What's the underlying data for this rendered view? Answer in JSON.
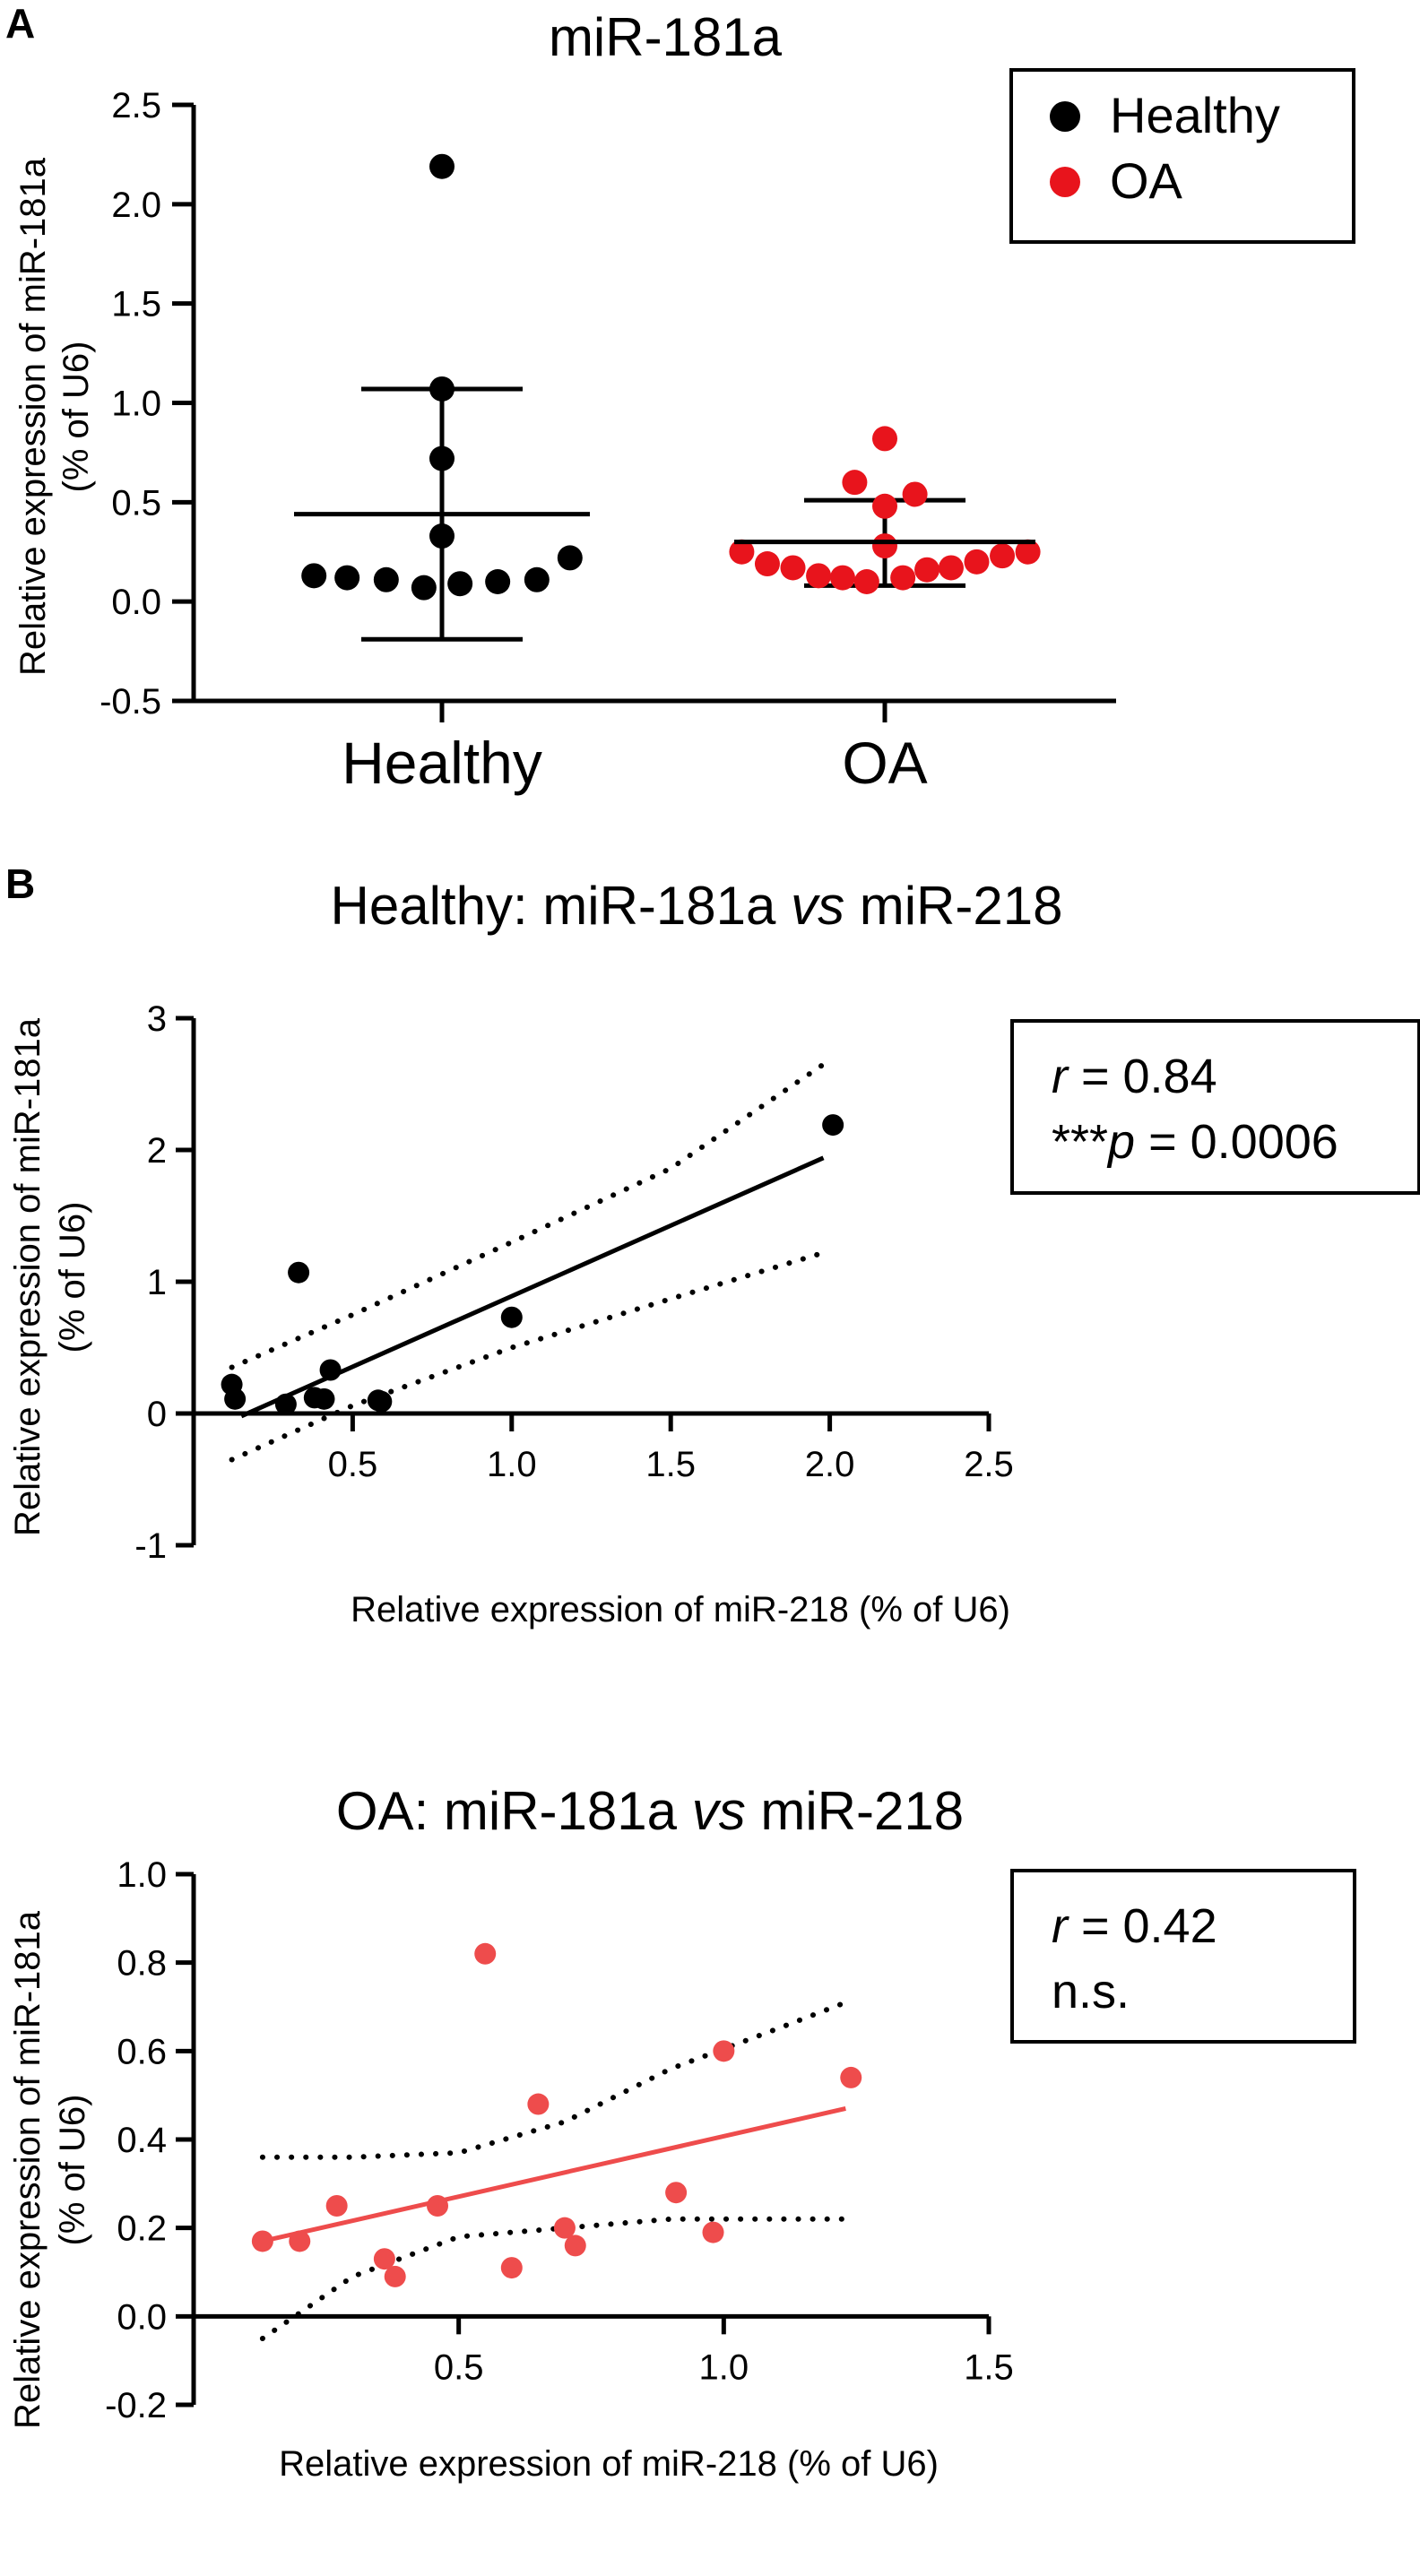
{
  "figure": {
    "panel_a": "A",
    "panel_b": "B"
  },
  "colors": {
    "healthy": "#000000",
    "oa": "#e8141c",
    "oa_scatter": "#ee4c4c",
    "axis": "#000000"
  },
  "chart_data": [
    {
      "id": "a",
      "type": "scatter",
      "title": "miR-181a",
      "xlabel": "",
      "ylabel_line1": "Relative expression of miR-181a",
      "ylabel_line2": "(% of U6)",
      "ylim": [
        -0.5,
        2.5
      ],
      "ytick_values": [
        -0.5,
        0.0,
        0.5,
        1.0,
        1.5,
        2.0,
        2.5
      ],
      "ytick_labels": [
        "-0.5",
        "0.0",
        "0.5",
        "1.0",
        "1.5",
        "2.0",
        "2.5"
      ],
      "categories": [
        "Healthy",
        "OA"
      ],
      "legend": {
        "items": [
          "Healthy",
          "OA"
        ],
        "placement": "top-right"
      },
      "series": [
        {
          "name": "Healthy",
          "color": "#000000",
          "mean": 0.44,
          "sd_upper": 1.07,
          "sd_lower": -0.19,
          "points": [
            {
              "offset": -0.85,
              "y": 0.13
            },
            {
              "offset": -0.63,
              "y": 0.12
            },
            {
              "offset": -0.37,
              "y": 0.11
            },
            {
              "offset": -0.12,
              "y": 0.07
            },
            {
              "offset": 0.0,
              "y": 2.19
            },
            {
              "offset": 0.0,
              "y": 1.07
            },
            {
              "offset": 0.0,
              "y": 0.72
            },
            {
              "offset": 0.0,
              "y": 0.33
            },
            {
              "offset": 0.12,
              "y": 0.09
            },
            {
              "offset": 0.37,
              "y": 0.1
            },
            {
              "offset": 0.63,
              "y": 0.11
            },
            {
              "offset": 0.85,
              "y": 0.22
            }
          ]
        },
        {
          "name": "OA",
          "color": "#e8141c",
          "mean": 0.3,
          "sd_upper": 0.51,
          "sd_lower": 0.08,
          "points": [
            {
              "offset": -0.95,
              "y": 0.25
            },
            {
              "offset": -0.78,
              "y": 0.19
            },
            {
              "offset": -0.61,
              "y": 0.17
            },
            {
              "offset": -0.44,
              "y": 0.13
            },
            {
              "offset": -0.28,
              "y": 0.12
            },
            {
              "offset": -0.2,
              "y": 0.6
            },
            {
              "offset": -0.12,
              "y": 0.1
            },
            {
              "offset": 0.0,
              "y": 0.48
            },
            {
              "offset": 0.0,
              "y": 0.28
            },
            {
              "offset": 0.0,
              "y": 0.82
            },
            {
              "offset": 0.12,
              "y": 0.12
            },
            {
              "offset": 0.2,
              "y": 0.54
            },
            {
              "offset": 0.28,
              "y": 0.16
            },
            {
              "offset": 0.44,
              "y": 0.17
            },
            {
              "offset": 0.61,
              "y": 0.2
            },
            {
              "offset": 0.78,
              "y": 0.23
            },
            {
              "offset": 0.95,
              "y": 0.25
            }
          ]
        }
      ]
    },
    {
      "id": "b1",
      "type": "scatter",
      "title_pre": "Healthy: miR-181a ",
      "title_em": "vs",
      "title_post": " miR-218",
      "xlabel": "Relative expression of miR-218 (% of U6)",
      "ylabel_line1": "Relative expression of miR-181a",
      "ylabel_line2": "(% of U6)",
      "xlim": [
        0,
        2.5
      ],
      "ylim": [
        -1,
        3
      ],
      "xtick_values": [
        0.5,
        1.0,
        1.5,
        2.0,
        2.5
      ],
      "xtick_labels": [
        "0.5",
        "1.0",
        "1.5",
        "2.0",
        "2.5"
      ],
      "ytick_values": [
        -1,
        0,
        1,
        2,
        3
      ],
      "ytick_labels": [
        "-1",
        "0",
        "1",
        "2",
        "3"
      ],
      "stats": {
        "r_symbol": "r",
        "r_value": " = 0.84",
        "p_stars": "***",
        "p_symbol": "p",
        "p_value": " = 0.0006"
      },
      "points": [
        {
          "x": 0.12,
          "y": 0.22
        },
        {
          "x": 0.13,
          "y": 0.11
        },
        {
          "x": 0.29,
          "y": 0.07
        },
        {
          "x": 0.33,
          "y": 1.07
        },
        {
          "x": 0.38,
          "y": 0.12
        },
        {
          "x": 0.41,
          "y": 0.11
        },
        {
          "x": 0.43,
          "y": 0.33
        },
        {
          "x": 0.58,
          "y": 0.1
        },
        {
          "x": 0.59,
          "y": 0.09
        },
        {
          "x": 1.0,
          "y": 0.73
        },
        {
          "x": 2.01,
          "y": 2.19
        }
      ],
      "fit": {
        "x": [
          0.15,
          1.98
        ],
        "y": [
          -0.02,
          1.94
        ]
      },
      "ci_upper": [
        [
          0.12,
          0.35
        ],
        [
          0.5,
          0.75
        ],
        [
          1.0,
          1.3
        ],
        [
          1.5,
          1.86
        ],
        [
          1.98,
          2.65
        ]
      ],
      "ci_lower": [
        [
          0.12,
          -0.35
        ],
        [
          0.5,
          0.06
        ],
        [
          1.0,
          0.5
        ],
        [
          1.5,
          0.87
        ],
        [
          1.98,
          1.22
        ]
      ]
    },
    {
      "id": "b2",
      "type": "scatter",
      "title_pre": "OA: miR-181a ",
      "title_em": "vs",
      "title_post": " miR-218",
      "xlabel": "Relative expression of miR-218 (% of U6)",
      "ylabel_line1": "Relative expression of miR-181a",
      "ylabel_line2": "(% of U6)",
      "xlim": [
        0,
        1.5
      ],
      "ylim": [
        -0.2,
        1.0
      ],
      "xtick_values": [
        0.5,
        1.0,
        1.5
      ],
      "xtick_labels": [
        "0.5",
        "1.0",
        "1.5"
      ],
      "ytick_values": [
        -0.2,
        0.0,
        0.2,
        0.4,
        0.6,
        0.8,
        1.0
      ],
      "ytick_labels": [
        "-0.2",
        "0.0",
        "0.2",
        "0.4",
        "0.6",
        "0.8",
        "1.0"
      ],
      "stats": {
        "r_symbol": "r",
        "r_value": " = 0.42",
        "ns": "n.s."
      },
      "points": [
        {
          "x": 0.13,
          "y": 0.17
        },
        {
          "x": 0.2,
          "y": 0.17
        },
        {
          "x": 0.27,
          "y": 0.25
        },
        {
          "x": 0.36,
          "y": 0.13
        },
        {
          "x": 0.38,
          "y": 0.09
        },
        {
          "x": 0.46,
          "y": 0.25
        },
        {
          "x": 0.55,
          "y": 0.82
        },
        {
          "x": 0.6,
          "y": 0.11
        },
        {
          "x": 0.65,
          "y": 0.48
        },
        {
          "x": 0.7,
          "y": 0.2
        },
        {
          "x": 0.72,
          "y": 0.16
        },
        {
          "x": 0.91,
          "y": 0.28
        },
        {
          "x": 0.98,
          "y": 0.19
        },
        {
          "x": 1.0,
          "y": 0.6
        },
        {
          "x": 1.24,
          "y": 0.54
        }
      ],
      "fit": {
        "x": [
          0.13,
          1.23
        ],
        "y": [
          0.17,
          0.47
        ]
      },
      "ci_upper": [
        [
          0.13,
          0.36
        ],
        [
          0.3,
          0.36
        ],
        [
          0.5,
          0.37
        ],
        [
          0.7,
          0.44
        ],
        [
          0.9,
          0.56
        ],
        [
          1.1,
          0.65
        ],
        [
          1.23,
          0.71
        ]
      ],
      "ci_lower": [
        [
          0.13,
          -0.05
        ],
        [
          0.3,
          0.09
        ],
        [
          0.5,
          0.18
        ],
        [
          0.7,
          0.2
        ],
        [
          0.9,
          0.22
        ],
        [
          1.1,
          0.22
        ],
        [
          1.23,
          0.22
        ]
      ]
    }
  ]
}
